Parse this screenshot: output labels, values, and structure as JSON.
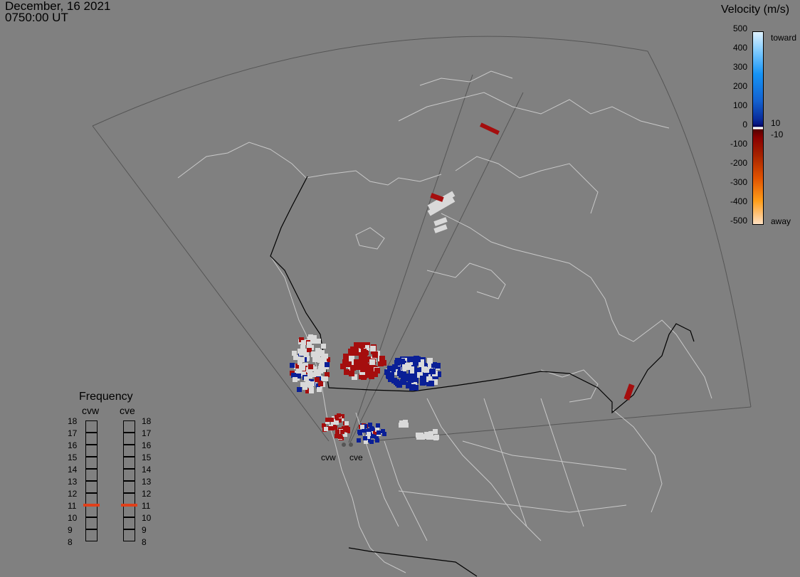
{
  "header": {
    "date": "December, 16 2021",
    "time": "0750:00 UT"
  },
  "velocity_scale": {
    "title": "Velocity (m/s)",
    "ticks": [
      "500",
      "400",
      "300",
      "200",
      "100",
      "0",
      "-100",
      "-200",
      "-300",
      "-400",
      "-500"
    ],
    "near_zero_labels": [
      "10",
      "-10"
    ],
    "toward_label": "toward",
    "away_label": "away"
  },
  "frequency_panel": {
    "title": "Frequency",
    "radars": [
      {
        "name": "cvw",
        "current_mhz": 11
      },
      {
        "name": "cve",
        "current_mhz": 11
      }
    ],
    "ticks": [
      "18",
      "17",
      "16",
      "15",
      "14",
      "13",
      "12",
      "11",
      "10",
      "9",
      "8"
    ],
    "marker_color": "#e0401a"
  },
  "sites": [
    "cvw",
    "cve"
  ],
  "colors": {
    "background": "#808080",
    "coast": "#c8c8c8",
    "fov": "#555555",
    "border": "#000000",
    "ground_scatter": "#d9d9d9",
    "toward": "#0a1f96",
    "away": "#a50e0e"
  }
}
